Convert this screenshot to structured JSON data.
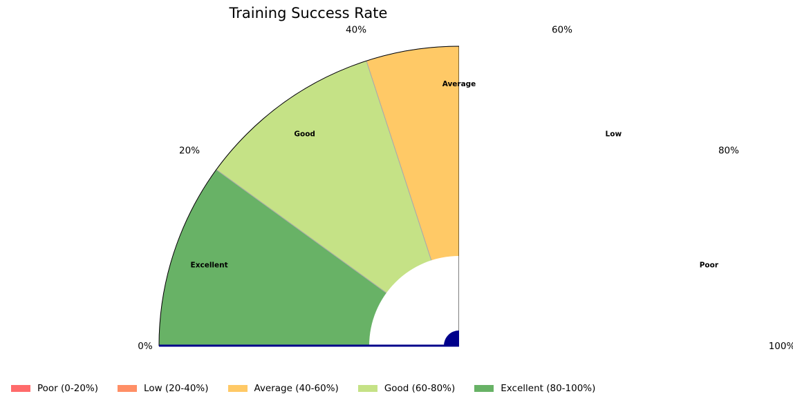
{
  "chart_data": {
    "type": "gauge",
    "title": "Training Success Rate",
    "value": 100,
    "range": [
      0,
      100
    ],
    "tick_labels": [
      "0%",
      "20%",
      "40%",
      "60%",
      "80%",
      "100%"
    ],
    "zones": [
      {
        "label": "Poor",
        "legend": "Poor (0-20%)",
        "from": 0,
        "to": 20,
        "color": "#ff6b6b"
      },
      {
        "label": "Low",
        "legend": "Low (20-40%)",
        "from": 20,
        "to": 40,
        "color": "#ff8f66"
      },
      {
        "label": "Average",
        "legend": "Average (40-60%)",
        "from": 40,
        "to": 60,
        "color": "#ffc966"
      },
      {
        "label": "Good",
        "legend": "Good (60-80%)",
        "from": 60,
        "to": 80,
        "color": "#c5e286"
      },
      {
        "label": "Excellent",
        "legend": "Excellent (80-100%)",
        "from": 80,
        "to": 100,
        "color": "#68b266"
      }
    ],
    "needle_color": "#00008b",
    "legend_position": "bottom"
  }
}
